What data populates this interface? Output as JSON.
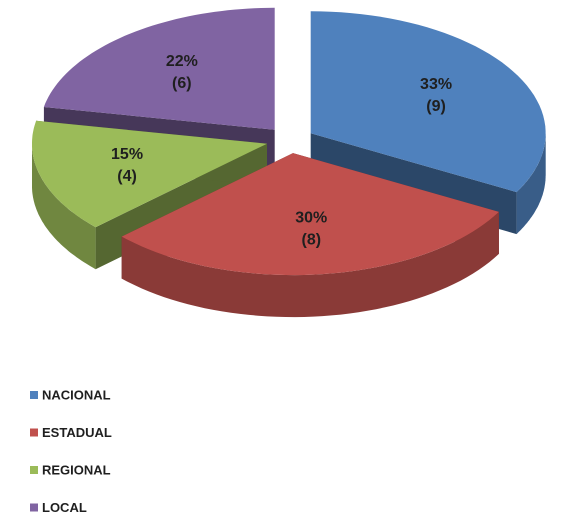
{
  "chart_data": {
    "type": "pie3d",
    "categories": [
      "NACIONAL",
      "ESTADUAL",
      "REGIONAL",
      "LOCAL"
    ],
    "values": [
      33,
      30,
      15,
      22
    ],
    "value_labels": [
      "33%",
      "30%",
      "15%",
      "22%"
    ],
    "counts": [
      9,
      8,
      4,
      6
    ],
    "count_labels": [
      "(9)",
      "(8)",
      "(4)",
      "(6)"
    ],
    "colors": [
      "#4f81bd",
      "#c0504d",
      "#9bbb59",
      "#8064a2"
    ],
    "legend": "bottom-left"
  }
}
